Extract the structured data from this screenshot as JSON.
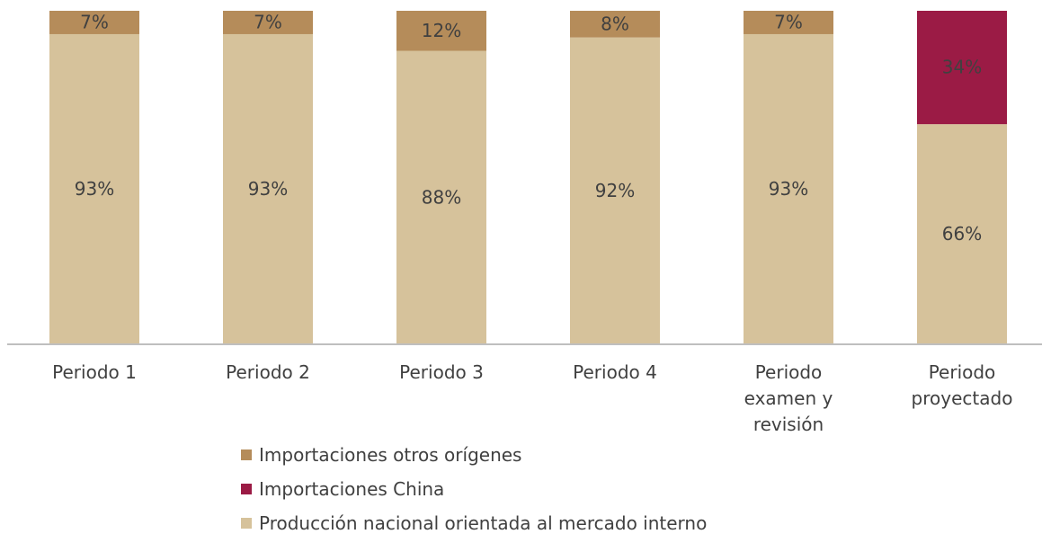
{
  "chart_data": {
    "type": "stacked_bar",
    "categories": [
      "Periodo 1",
      "Periodo 2",
      "Periodo 3",
      "Periodo 4",
      "Periodo examen y revisión",
      "Periodo proyectado"
    ],
    "series": [
      {
        "name": "Importaciones otros orígenes",
        "color": "#b58c5a",
        "values": [
          7,
          7,
          12,
          8,
          7,
          null
        ],
        "value_labels": [
          "7%",
          "7%",
          "12%",
          "8%",
          "7%",
          null
        ]
      },
      {
        "name": "Importaciones China",
        "color": "#9b1b45",
        "values": [
          null,
          null,
          null,
          null,
          null,
          34
        ],
        "value_labels": [
          null,
          null,
          null,
          null,
          null,
          "34%"
        ]
      },
      {
        "name": "Producción nacional orientada al mercado interno",
        "color": "#d6c29b",
        "values": [
          93,
          93,
          88,
          92,
          93,
          66
        ],
        "value_labels": [
          "93%",
          "93%",
          "88%",
          "92%",
          "93%",
          "66%"
        ]
      }
    ],
    "ylim": [
      0,
      100
    ]
  }
}
